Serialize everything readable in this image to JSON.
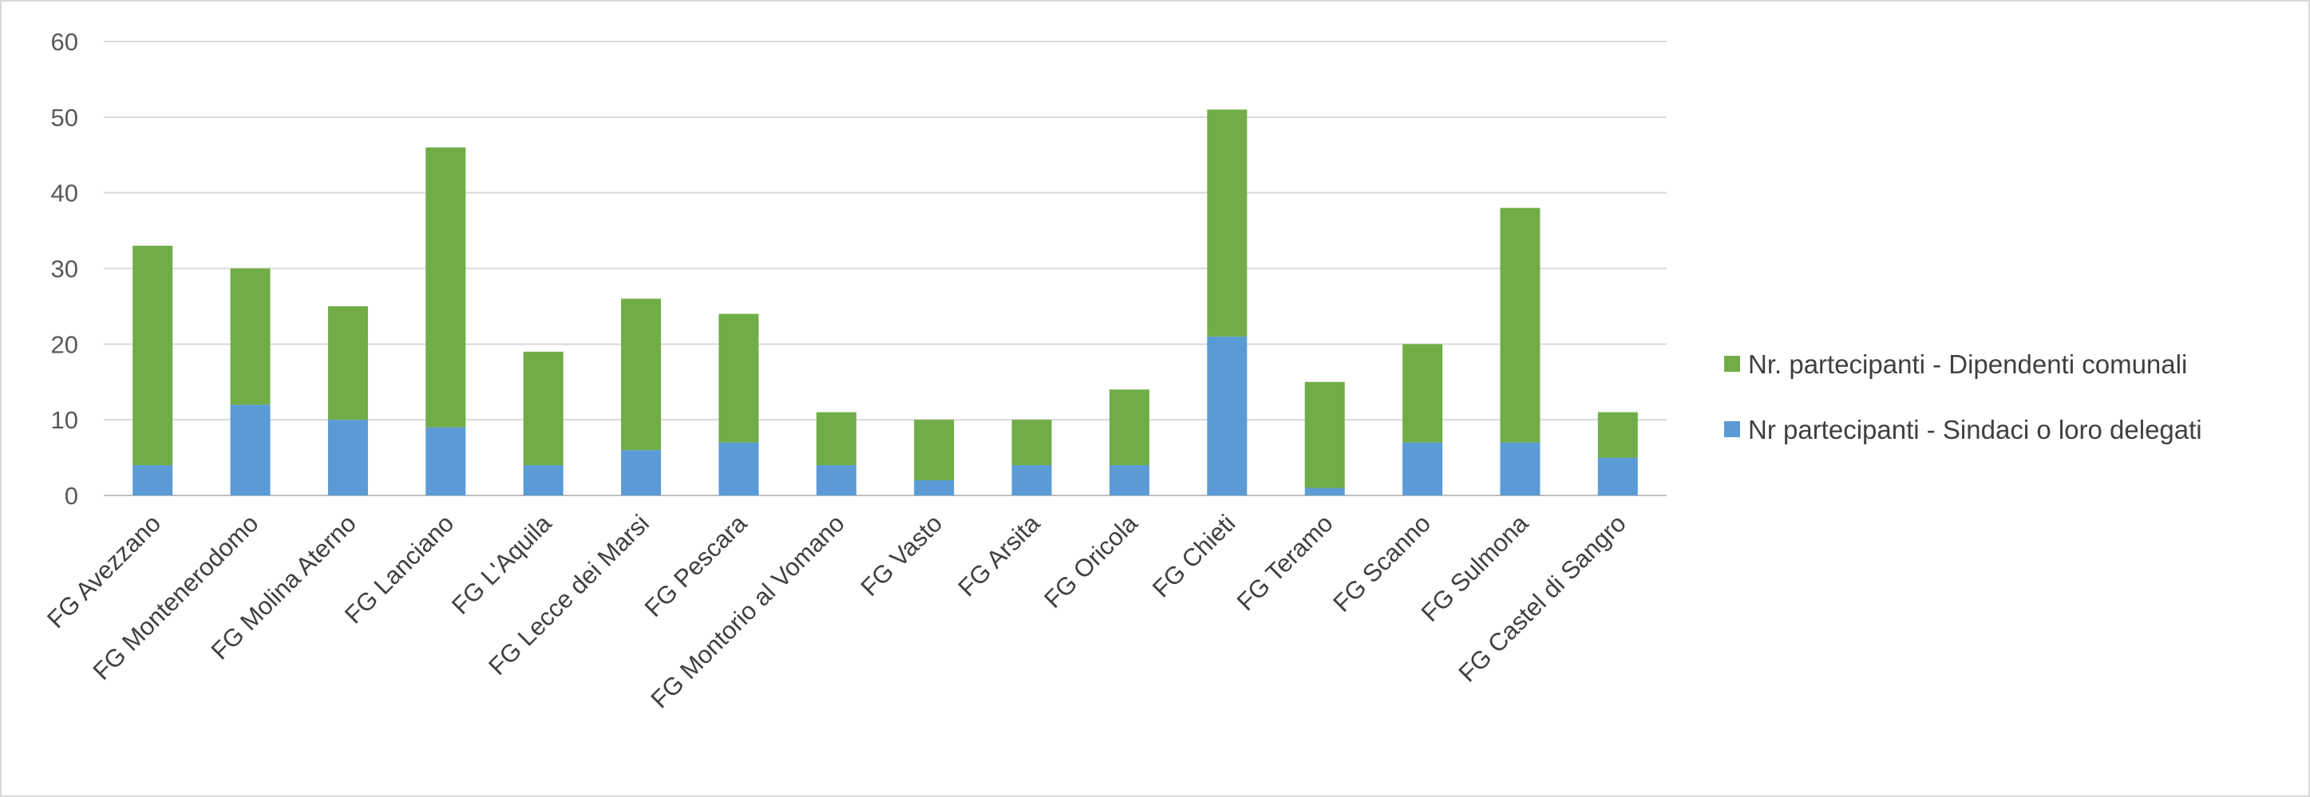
{
  "chart_data": {
    "type": "bar",
    "stacked": true,
    "categories": [
      "FG Avezzano",
      "FG Montenerodomo",
      "FG Molina Aterno",
      "FG Lanciano",
      "FG L'Aquila",
      "FG Lecce dei Marsi",
      "FG Pescara",
      "FG Montorio al Vomano",
      "FG Vasto",
      "FG Arsita",
      "FG Oricola",
      "FG Chieti",
      "FG Teramo",
      "FG Scanno",
      "FG Sulmona",
      "FG Castel di Sangro"
    ],
    "series": [
      {
        "name": "Nr partecipanti - Sindaci o loro delegati",
        "color": "#5b9bd5",
        "values": [
          4,
          12,
          10,
          9,
          4,
          6,
          7,
          4,
          2,
          4,
          4,
          21,
          1,
          7,
          7,
          5
        ]
      },
      {
        "name": "Nr. partecipanti - Dipendenti comunali",
        "color": "#70ad47",
        "values": [
          29,
          18,
          15,
          37,
          15,
          20,
          17,
          7,
          8,
          6,
          10,
          30,
          14,
          13,
          31,
          6
        ]
      }
    ],
    "ylim": [
      0,
      60
    ],
    "yticks": [
      0,
      10,
      20,
      30,
      40,
      50,
      60
    ],
    "grid": true,
    "legend_position": "right",
    "title": "",
    "xlabel": "",
    "ylabel": ""
  }
}
